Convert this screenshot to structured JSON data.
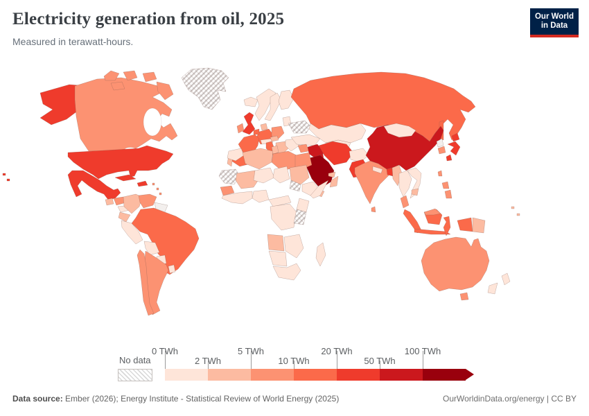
{
  "header": {
    "title": "Electricity generation from oil, 2025",
    "subtitle": "Measured in terawatt-hours."
  },
  "logo": {
    "line1": "Our World",
    "line2": "in Data",
    "bg_color": "#002147",
    "bar_color": "#d42b21"
  },
  "legend": {
    "no_data_label": "No data",
    "boundary_labels": [
      "0 TWh",
      "2 TWh",
      "5 TWh",
      "10 TWh",
      "20 TWh",
      "50 TWh",
      "100 TWh"
    ]
  },
  "footer": {
    "source_label": "Data source:",
    "source_text": " Ember (2026); Energy Institute - Statistical Review of World Energy (2025)",
    "link": "OurWorldinData.org/energy",
    "separator": " | ",
    "license": "CC BY"
  },
  "chart_data": {
    "type": "heatmap",
    "subtype": "choropleth-world-map",
    "title": "Electricity generation from oil, 2025",
    "unit": "TWh",
    "legend_position": "bottom",
    "zero_color": "#f3efed",
    "no_data_pattern": "diagonal-hatch",
    "legend_bins": [
      {
        "range": "0-2",
        "color": "#fee5d9"
      },
      {
        "range": "2-5",
        "color": "#fcbba1"
      },
      {
        "range": "5-10",
        "color": "#fc9272"
      },
      {
        "range": "10-20",
        "color": "#fb6a4a"
      },
      {
        "range": "20-50",
        "color": "#ef3b2c"
      },
      {
        "range": "50-100",
        "color": "#cb181d"
      },
      {
        "range": "100+",
        "color": "#99000d"
      }
    ],
    "countries": [
      {
        "id": "usa",
        "name": "United States",
        "value_bin": "20-50"
      },
      {
        "id": "canada",
        "name": "Canada",
        "value_bin": "5-10"
      },
      {
        "id": "greenland",
        "name": "Greenland",
        "value_bin": "no-data"
      },
      {
        "id": "mexico",
        "name": "Mexico",
        "value_bin": "20-50"
      },
      {
        "id": "cuba",
        "name": "Cuba",
        "value_bin": "20-50"
      },
      {
        "id": "hispaniola",
        "name": "Dominican Republic",
        "value_bin": "20-50"
      },
      {
        "id": "antilles",
        "name": "Lesser Antilles",
        "value_bin": "5-10"
      },
      {
        "id": "guatemala",
        "name": "Guatemala",
        "value_bin": "2-5"
      },
      {
        "id": "honduras",
        "name": "Honduras / Nicaragua",
        "value_bin": "5-10"
      },
      {
        "id": "panama",
        "name": "Costa Rica / Panama",
        "value_bin": "0-2"
      },
      {
        "id": "colombia",
        "name": "Colombia",
        "value_bin": "2-5"
      },
      {
        "id": "venezuela",
        "name": "Venezuela",
        "value_bin": "5-10"
      },
      {
        "id": "guyanas",
        "name": "Guyana & Suriname",
        "value_bin": "0"
      },
      {
        "id": "ecuador",
        "name": "Ecuador",
        "value_bin": "2-5"
      },
      {
        "id": "peru",
        "name": "Peru",
        "value_bin": "0-2"
      },
      {
        "id": "brazil",
        "name": "Brazil",
        "value_bin": "10-20"
      },
      {
        "id": "bolivia",
        "name": "Bolivia",
        "value_bin": "0-2"
      },
      {
        "id": "paraguay",
        "name": "Paraguay",
        "value_bin": "0-2"
      },
      {
        "id": "uruguay",
        "name": "Uruguay",
        "value_bin": "0-2"
      },
      {
        "id": "chile",
        "name": "Chile",
        "value_bin": "5-10"
      },
      {
        "id": "argentina",
        "name": "Argentina",
        "value_bin": "5-10"
      },
      {
        "id": "iceland",
        "name": "Iceland",
        "value_bin": "0-2"
      },
      {
        "id": "uk",
        "name": "United Kingdom",
        "value_bin": "20-50"
      },
      {
        "id": "ireland",
        "name": "Ireland",
        "value_bin": "5-10"
      },
      {
        "id": "norway",
        "name": "Norway",
        "value_bin": "0-2"
      },
      {
        "id": "sweden",
        "name": "Sweden",
        "value_bin": "0-2"
      },
      {
        "id": "finland",
        "name": "Finland",
        "value_bin": "0-2"
      },
      {
        "id": "denmark",
        "name": "Denmark",
        "value_bin": "2-5"
      },
      {
        "id": "germany",
        "name": "Germany",
        "value_bin": "10-20"
      },
      {
        "id": "benelux",
        "name": "Netherlands / Belgium",
        "value_bin": "10-20"
      },
      {
        "id": "france",
        "name": "France",
        "value_bin": "10-20"
      },
      {
        "id": "spain",
        "name": "Spain",
        "value_bin": "10-20"
      },
      {
        "id": "portugal",
        "name": "Portugal",
        "value_bin": "2-5"
      },
      {
        "id": "italy",
        "name": "Italy",
        "value_bin": "10-20"
      },
      {
        "id": "alpine",
        "name": "Switzerland / Austria",
        "value_bin": "0-2"
      },
      {
        "id": "poland",
        "name": "Poland",
        "value_bin": "5-10"
      },
      {
        "id": "czech",
        "name": "Czechia",
        "value_bin": "2-5"
      },
      {
        "id": "balkans",
        "name": "Balkans",
        "value_bin": "2-5"
      },
      {
        "id": "greece",
        "name": "Greece",
        "value_bin": "5-10"
      },
      {
        "id": "romania",
        "name": "Romania / Bulgaria",
        "value_bin": "0-2"
      },
      {
        "id": "baltics",
        "name": "Baltic states",
        "value_bin": "0-2"
      },
      {
        "id": "belarus",
        "name": "Belarus",
        "value_bin": "0-2"
      },
      {
        "id": "ukraine",
        "name": "Ukraine",
        "value_bin": "no-data"
      },
      {
        "id": "russia",
        "name": "Russia",
        "value_bin": "10-20"
      },
      {
        "id": "turkey",
        "name": "Turkey",
        "value_bin": "0-2"
      },
      {
        "id": "levant",
        "name": "Syria / Lebanon",
        "value_bin": "5-10"
      },
      {
        "id": "iraq",
        "name": "Iraq",
        "value_bin": "50-100"
      },
      {
        "id": "iran",
        "name": "Iran",
        "value_bin": "20-50"
      },
      {
        "id": "saudi",
        "name": "Saudi Arabia",
        "value_bin": "100+"
      },
      {
        "id": "kuwait",
        "name": "Kuwait",
        "value_bin": "50-100"
      },
      {
        "id": "uae",
        "name": "United Arab Emirates",
        "value_bin": "2-5"
      },
      {
        "id": "yemen",
        "name": "Yemen",
        "value_bin": "2-5"
      },
      {
        "id": "oman",
        "name": "Oman",
        "value_bin": "2-5"
      },
      {
        "id": "kazakhstan",
        "name": "Kazakhstan",
        "value_bin": "0-2"
      },
      {
        "id": "centralasia",
        "name": "Central Asia",
        "value_bin": "0-2"
      },
      {
        "id": "afghanistan",
        "name": "Afghanistan",
        "value_bin": "0-2"
      },
      {
        "id": "pakistan",
        "name": "Pakistan",
        "value_bin": "20-50"
      },
      {
        "id": "india",
        "name": "India",
        "value_bin": "5-10"
      },
      {
        "id": "srilanka",
        "name": "Sri Lanka",
        "value_bin": "5-10"
      },
      {
        "id": "nepal",
        "name": "Nepal",
        "value_bin": "0-2"
      },
      {
        "id": "bangladesh",
        "name": "Bangladesh",
        "value_bin": "20-50"
      },
      {
        "id": "myanmar",
        "name": "Myanmar",
        "value_bin": "2-5"
      },
      {
        "id": "thailand",
        "name": "Thailand",
        "value_bin": "0-2"
      },
      {
        "id": "indochina",
        "name": "Vietnam / Laos",
        "value_bin": "0-2"
      },
      {
        "id": "cambodia",
        "name": "Cambodia",
        "value_bin": "2-5"
      },
      {
        "id": "malaysia",
        "name": "Malaysia",
        "value_bin": "5-10"
      },
      {
        "id": "indonesia",
        "name": "Indonesia",
        "value_bin": "10-20"
      },
      {
        "id": "png",
        "name": "Papua New Guinea",
        "value_bin": "2-5"
      },
      {
        "id": "china",
        "name": "China",
        "value_bin": "50-100"
      },
      {
        "id": "mongolia",
        "name": "Mongolia",
        "value_bin": "0-2"
      },
      {
        "id": "nkorea",
        "name": "North Korea",
        "value_bin": "0"
      },
      {
        "id": "skorea",
        "name": "South Korea",
        "value_bin": "5-10"
      },
      {
        "id": "japan",
        "name": "Japan",
        "value_bin": "20-50"
      },
      {
        "id": "taiwan",
        "name": "Taiwan",
        "value_bin": "5-10"
      },
      {
        "id": "philippines",
        "name": "Philippines",
        "value_bin": "5-10"
      },
      {
        "id": "australia",
        "name": "Australia",
        "value_bin": "5-10"
      },
      {
        "id": "newzealand",
        "name": "New Zealand",
        "value_bin": "0-2"
      },
      {
        "id": "pacific",
        "name": "Pacific islands",
        "value_bin": "2-5"
      },
      {
        "id": "morocco",
        "name": "Morocco",
        "value_bin": "0-2"
      },
      {
        "id": "wsahara",
        "name": "Western Sahara / Mauritania",
        "value_bin": "no-data"
      },
      {
        "id": "senegal",
        "name": "Senegal",
        "value_bin": "5-10"
      },
      {
        "id": "mali",
        "name": "Mali",
        "value_bin": "2-5"
      },
      {
        "id": "algeria",
        "name": "Algeria",
        "value_bin": "2-5"
      },
      {
        "id": "tunisia",
        "name": "Tunisia",
        "value_bin": "2-5"
      },
      {
        "id": "libya",
        "name": "Libya",
        "value_bin": "5-10"
      },
      {
        "id": "egypt",
        "name": "Egypt",
        "value_bin": "5-10"
      },
      {
        "id": "niger",
        "name": "Niger",
        "value_bin": "0-2"
      },
      {
        "id": "chad",
        "name": "Chad",
        "value_bin": "0-2"
      },
      {
        "id": "sudan",
        "name": "Sudan",
        "value_bin": "2-5"
      },
      {
        "id": "southsudan",
        "name": "South Sudan",
        "value_bin": "no-data"
      },
      {
        "id": "ethiopia",
        "name": "Ethiopia",
        "value_bin": "0-2"
      },
      {
        "id": "somalia",
        "name": "Somalia",
        "value_bin": "0-2"
      },
      {
        "id": "nigeria",
        "name": "Nigeria",
        "value_bin": "0-2"
      },
      {
        "id": "westafrica",
        "name": "West Africa",
        "value_bin": "0-2"
      },
      {
        "id": "cameroon",
        "name": "Cameroon / CAR",
        "value_bin": "0-2"
      },
      {
        "id": "drc",
        "name": "DR Congo",
        "value_bin": "0-2"
      },
      {
        "id": "kenya",
        "name": "Kenya",
        "value_bin": "0-2"
      },
      {
        "id": "tanzania",
        "name": "Tanzania",
        "value_bin": "no-data"
      },
      {
        "id": "angola",
        "name": "Angola",
        "value_bin": "2-5"
      },
      {
        "id": "zambia",
        "name": "Zambia / Mozambique",
        "value_bin": "0-2"
      },
      {
        "id": "namibia",
        "name": "Namibia / Botswana",
        "value_bin": "0-2"
      },
      {
        "id": "southafrica",
        "name": "South Africa",
        "value_bin": "0-2"
      },
      {
        "id": "madagascar",
        "name": "Madagascar",
        "value_bin": "0-2"
      }
    ]
  }
}
